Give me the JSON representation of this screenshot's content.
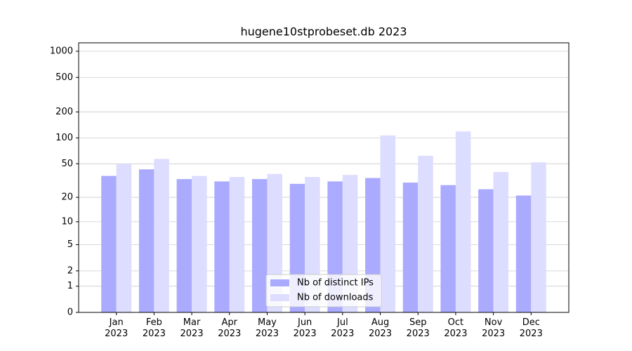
{
  "chart_data": {
    "type": "bar",
    "title": "hugene10stprobeset.db 2023",
    "categories": [
      "Jan 2023",
      "Feb 2023",
      "Mar 2023",
      "Apr 2023",
      "May 2023",
      "Jun 2023",
      "Jul 2023",
      "Aug 2023",
      "Sep 2023",
      "Oct 2023",
      "Nov 2023",
      "Dec 2023"
    ],
    "series": [
      {
        "name": "Nb of distinct IPs",
        "color": "#aaaaff",
        "values": [
          36,
          43,
          33,
          31,
          33,
          29,
          31,
          34,
          30,
          28,
          25,
          21
        ]
      },
      {
        "name": "Nb of downloads",
        "color": "#ddddff",
        "values": [
          50,
          57,
          36,
          35,
          38,
          35,
          37,
          107,
          62,
          119,
          40,
          52
        ]
      }
    ],
    "yscale": "log1p",
    "ylim": [
      0,
      1250
    ],
    "yticks": [
      0,
      1,
      2,
      5,
      10,
      20,
      50,
      100,
      200,
      500,
      1000
    ],
    "grid": true,
    "legend": "lower center"
  }
}
